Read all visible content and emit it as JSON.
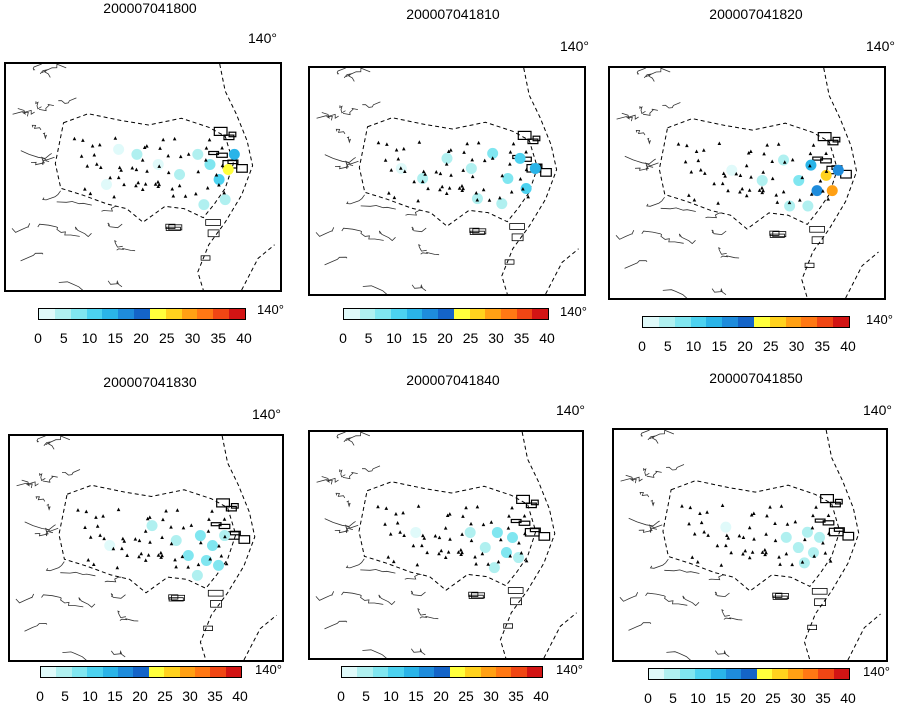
{
  "panels": [
    {
      "title": "200007041800",
      "map_lon_label": "140",
      "colorbar_lon_label": "140",
      "stations": [
        {
          "lon": 139.42,
          "lat": 35.73,
          "value": 3
        },
        {
          "lon": 139.48,
          "lat": 35.72,
          "value": 4
        },
        {
          "lon": 139.55,
          "lat": 35.7,
          "value": 2
        },
        {
          "lon": 139.62,
          "lat": 35.68,
          "value": 5
        },
        {
          "lon": 139.68,
          "lat": 35.72,
          "value": 6
        },
        {
          "lon": 139.72,
          "lat": 35.7,
          "value": 8
        },
        {
          "lon": 139.75,
          "lat": 35.67,
          "value": 12
        },
        {
          "lon": 139.78,
          "lat": 35.69,
          "value": 22
        },
        {
          "lon": 139.8,
          "lat": 35.72,
          "value": 14
        },
        {
          "lon": 139.77,
          "lat": 35.63,
          "value": 6
        },
        {
          "lon": 139.7,
          "lat": 35.62,
          "value": 4
        },
        {
          "lon": 139.38,
          "lat": 35.66,
          "value": 3
        }
      ]
    },
    {
      "title": "200007041810",
      "map_lon_label": "140",
      "colorbar_lon_label": "140",
      "stations": [
        {
          "lon": 139.35,
          "lat": 35.7,
          "value": 3
        },
        {
          "lon": 139.42,
          "lat": 35.68,
          "value": 4
        },
        {
          "lon": 139.5,
          "lat": 35.72,
          "value": 5
        },
        {
          "lon": 139.58,
          "lat": 35.7,
          "value": 6
        },
        {
          "lon": 139.65,
          "lat": 35.73,
          "value": 7
        },
        {
          "lon": 139.7,
          "lat": 35.68,
          "value": 9
        },
        {
          "lon": 139.74,
          "lat": 35.72,
          "value": 12
        },
        {
          "lon": 139.76,
          "lat": 35.66,
          "value": 10
        },
        {
          "lon": 139.79,
          "lat": 35.7,
          "value": 15
        },
        {
          "lon": 139.68,
          "lat": 35.63,
          "value": 5
        },
        {
          "lon": 139.6,
          "lat": 35.64,
          "value": 4
        }
      ]
    },
    {
      "title": "200007041820",
      "map_lon_label": "140",
      "colorbar_lon_label": "140",
      "stations": [
        {
          "lon": 139.45,
          "lat": 35.7,
          "value": 3
        },
        {
          "lon": 139.55,
          "lat": 35.68,
          "value": 4
        },
        {
          "lon": 139.62,
          "lat": 35.72,
          "value": 6
        },
        {
          "lon": 139.67,
          "lat": 35.68,
          "value": 8
        },
        {
          "lon": 139.71,
          "lat": 35.71,
          "value": 13
        },
        {
          "lon": 139.73,
          "lat": 35.66,
          "value": 17
        },
        {
          "lon": 139.76,
          "lat": 35.69,
          "value": 25
        },
        {
          "lon": 139.78,
          "lat": 35.66,
          "value": 30
        },
        {
          "lon": 139.8,
          "lat": 35.7,
          "value": 18
        },
        {
          "lon": 139.7,
          "lat": 35.63,
          "value": 6
        },
        {
          "lon": 139.64,
          "lat": 35.63,
          "value": 5
        }
      ]
    },
    {
      "title": "200007041830",
      "map_lon_label": "140",
      "colorbar_lon_label": "140",
      "stations": [
        {
          "lon": 139.38,
          "lat": 35.68,
          "value": 3
        },
        {
          "lon": 139.52,
          "lat": 35.72,
          "value": 4
        },
        {
          "lon": 139.6,
          "lat": 35.69,
          "value": 6
        },
        {
          "lon": 139.64,
          "lat": 35.66,
          "value": 7
        },
        {
          "lon": 139.68,
          "lat": 35.7,
          "value": 8
        },
        {
          "lon": 139.7,
          "lat": 35.65,
          "value": 9
        },
        {
          "lon": 139.72,
          "lat": 35.68,
          "value": 8
        },
        {
          "lon": 139.74,
          "lat": 35.64,
          "value": 7
        },
        {
          "lon": 139.76,
          "lat": 35.7,
          "value": 6
        },
        {
          "lon": 139.67,
          "lat": 35.62,
          "value": 5
        }
      ]
    },
    {
      "title": "200007041840",
      "map_lon_label": "140",
      "colorbar_lon_label": "140",
      "stations": [
        {
          "lon": 139.4,
          "lat": 35.7,
          "value": 3
        },
        {
          "lon": 139.58,
          "lat": 35.7,
          "value": 4
        },
        {
          "lon": 139.63,
          "lat": 35.67,
          "value": 6
        },
        {
          "lon": 139.67,
          "lat": 35.7,
          "value": 7
        },
        {
          "lon": 139.7,
          "lat": 35.66,
          "value": 8
        },
        {
          "lon": 139.72,
          "lat": 35.69,
          "value": 7
        },
        {
          "lon": 139.74,
          "lat": 35.65,
          "value": 6
        },
        {
          "lon": 139.66,
          "lat": 35.63,
          "value": 5
        }
      ]
    },
    {
      "title": "200007041850",
      "map_lon_label": "140",
      "colorbar_lon_label": "140",
      "stations": [
        {
          "lon": 139.42,
          "lat": 35.71,
          "value": 3
        },
        {
          "lon": 139.62,
          "lat": 35.69,
          "value": 4
        },
        {
          "lon": 139.66,
          "lat": 35.67,
          "value": 5
        },
        {
          "lon": 139.69,
          "lat": 35.7,
          "value": 5
        },
        {
          "lon": 139.71,
          "lat": 35.66,
          "value": 6
        },
        {
          "lon": 139.73,
          "lat": 35.69,
          "value": 5
        },
        {
          "lon": 139.68,
          "lat": 35.64,
          "value": 4
        }
      ]
    }
  ],
  "colorbar": {
    "ticks": [
      "0",
      "5",
      "10",
      "15",
      "20",
      "25",
      "30",
      "35",
      "40"
    ],
    "colors": [
      "#e0fafa",
      "#b0f0f0",
      "#80e6f0",
      "#4cd2f0",
      "#2ab4e8",
      "#1e8cdc",
      "#1464c8",
      "#ffff3c",
      "#ffd21e",
      "#ffa014",
      "#ff7814",
      "#f04614",
      "#d21414"
    ]
  },
  "map_style": {
    "land_outline": "#000000",
    "station_marker": "#000000"
  }
}
